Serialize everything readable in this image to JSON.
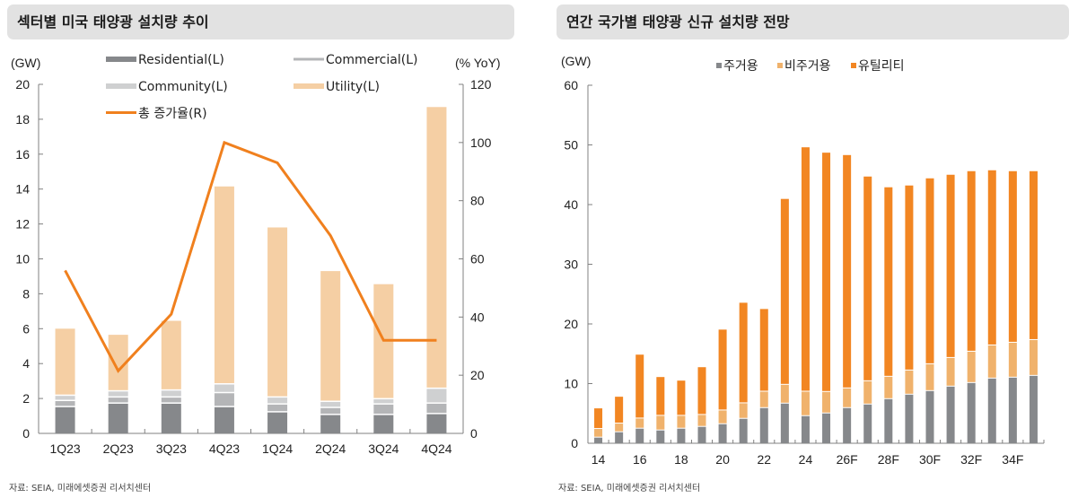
{
  "left_panel": {
    "title": "섹터별 미국 태양광 설치량 추이",
    "source": "자료: SEIA, 미래에셋증권 리서치센터"
  },
  "right_panel": {
    "title": "연간 국가별 태양광 신규 설치량 전망",
    "source": "자료: SEIA, 미래에셋증권 리서치센터"
  },
  "colors": {
    "residential": "#86888b",
    "commercial": "#b4b5b7",
    "community": "#cfd0d1",
    "utility_left": "#f5cfa4",
    "yoy_line": "#f0801e",
    "res_right": "#86888b",
    "nonres_right": "#f0b26c",
    "utility_right": "#f28622",
    "axis": "#808080"
  },
  "chart_data": [
    {
      "type": "bar",
      "stacked": true,
      "title": "섹터별 미국 태양광 설치량 추이",
      "ylabel": "(GW)",
      "y2label": "(% YoY)",
      "ylim": [
        0,
        20
      ],
      "y2lim": [
        0,
        120
      ],
      "yticks": [
        "0",
        "2",
        "4",
        "6",
        "8",
        "10",
        "12",
        "14",
        "16",
        "18",
        "20"
      ],
      "y2ticks": [
        "0",
        "20",
        "40",
        "60",
        "80",
        "100",
        "120"
      ],
      "categories": [
        "1Q23",
        "2Q23",
        "3Q23",
        "4Q23",
        "1Q24",
        "2Q24",
        "3Q24",
        "4Q24"
      ],
      "series": [
        {
          "name": "Residential(L)",
          "values": [
            1.5,
            1.7,
            1.7,
            1.5,
            1.2,
            1.05,
            1.05,
            1.1
          ]
        },
        {
          "name": "Commercial(L)",
          "values": [
            0.35,
            0.35,
            0.35,
            0.8,
            0.45,
            0.4,
            0.6,
            0.6
          ]
        },
        {
          "name": "Community(L)",
          "values": [
            0.3,
            0.35,
            0.4,
            0.5,
            0.4,
            0.35,
            0.3,
            0.85
          ]
        },
        {
          "name": "Utility(L)",
          "values": [
            3.85,
            3.25,
            4.0,
            11.35,
            9.75,
            7.5,
            6.6,
            16.15
          ]
        },
        {
          "name": "총 증가율(R)",
          "type": "line",
          "axis": "right",
          "values": [
            56,
            21.5,
            41,
            100,
            93,
            68,
            32,
            32
          ]
        }
      ],
      "legend": [
        "Residential(L)",
        "Commercial(L)",
        "Community(L)",
        "Utility(L)",
        "총 증가율(R)"
      ],
      "legend_position": "top"
    },
    {
      "type": "bar",
      "stacked": true,
      "title": "연간 국가별 태양광 신규 설치량 전망",
      "ylabel": "(GW)",
      "ylim": [
        0,
        60
      ],
      "yticks": [
        "0",
        "10",
        "20",
        "30",
        "40",
        "50",
        "60"
      ],
      "categories": [
        "14",
        "15",
        "16",
        "17",
        "18",
        "19",
        "20",
        "21",
        "22",
        "23",
        "24",
        "25",
        "26F",
        "27F",
        "28F",
        "29F",
        "30F",
        "31F",
        "32F",
        "33F",
        "34F",
        "35F"
      ],
      "xtick_labels": [
        "14",
        "16",
        "18",
        "20",
        "22",
        "24",
        "26F",
        "28F",
        "30F",
        "32F",
        "34F"
      ],
      "series": [
        {
          "name": "주거용",
          "values": [
            0.95,
            1.85,
            2.45,
            2.15,
            2.45,
            2.75,
            3.2,
            4.1,
            5.9,
            6.65,
            4.55,
            5.0,
            5.9,
            6.5,
            7.4,
            8.15,
            8.75,
            9.5,
            10.1,
            10.85,
            11.0,
            11.3
          ]
        },
        {
          "name": "비주거용",
          "values": [
            1.45,
            1.45,
            1.7,
            2.45,
            2.15,
            2.0,
            2.3,
            2.6,
            2.75,
            3.15,
            4.1,
            3.6,
            3.3,
            3.9,
            3.75,
            4.05,
            4.5,
            4.8,
            5.25,
            5.55,
            5.85,
            6.0
          ]
        },
        {
          "name": "유틸리티",
          "values": [
            3.45,
            4.5,
            10.7,
            6.5,
            5.9,
            8.0,
            13.55,
            16.85,
            13.85,
            31.15,
            40.95,
            40.1,
            39.1,
            34.3,
            31.75,
            31.0,
            31.15,
            30.7,
            30.25,
            29.35,
            28.75,
            28.3
          ]
        }
      ],
      "legend": [
        "주거용",
        "비주거용",
        "유틸리티"
      ],
      "legend_position": "top"
    }
  ]
}
